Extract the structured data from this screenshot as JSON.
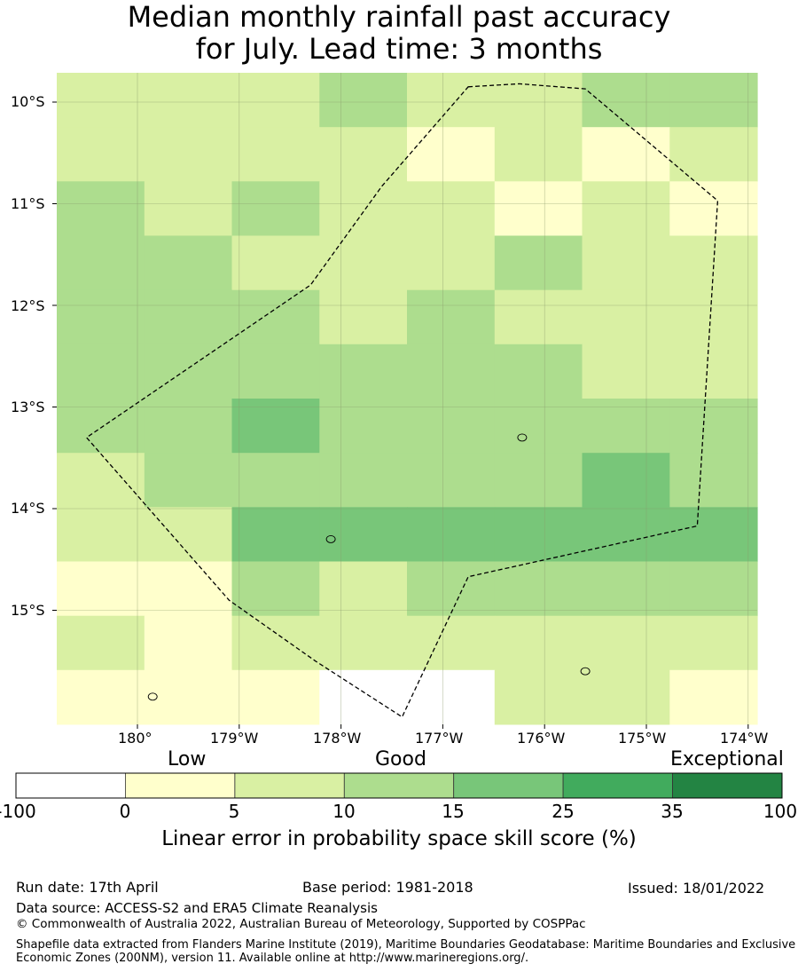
{
  "title": {
    "line1": "Median monthly rainfall past accuracy",
    "line2": "for July. Lead time: 3 months"
  },
  "map": {
    "lat_labels": [
      "10°S",
      "11°S",
      "12°S",
      "13°S",
      "14°S",
      "15°S"
    ],
    "lon_labels": [
      "180°",
      "179°W",
      "178°W",
      "177°W",
      "176°W",
      "175°W",
      "174°W"
    ],
    "lon_extent": [
      -180.8,
      -173.9
    ],
    "lat_extent": [
      -9.7,
      -16.1
    ],
    "skill_grid": [
      [
        2,
        2,
        2,
        3,
        2,
        2,
        3,
        3
      ],
      [
        2,
        2,
        2,
        2,
        1,
        2,
        1,
        2
      ],
      [
        3,
        2,
        3,
        2,
        2,
        1,
        2,
        1
      ],
      [
        3,
        3,
        2,
        2,
        2,
        3,
        2,
        2
      ],
      [
        3,
        3,
        3,
        2,
        3,
        2,
        2,
        2
      ],
      [
        3,
        3,
        3,
        3,
        3,
        3,
        2,
        2
      ],
      [
        3,
        3,
        4,
        3,
        3,
        3,
        3,
        3
      ],
      [
        2,
        3,
        3,
        3,
        3,
        3,
        4,
        3
      ],
      [
        2,
        2,
        4,
        4,
        4,
        4,
        4,
        4
      ],
      [
        1,
        1,
        3,
        2,
        3,
        3,
        3,
        3
      ],
      [
        2,
        1,
        2,
        2,
        2,
        2,
        2,
        2
      ],
      [
        1,
        1,
        1,
        0,
        0,
        2,
        2,
        1
      ]
    ],
    "skill_note": "cell values are colour-class indices into colorbar.colors",
    "eez_boundary": [
      [
        -176.75,
        -9.85
      ],
      [
        -176.25,
        -9.82
      ],
      [
        -175.6,
        -9.87
      ],
      [
        -174.3,
        -10.97
      ],
      [
        -174.5,
        -14.17
      ],
      [
        -176.75,
        -14.67
      ],
      [
        -177.4,
        -16.05
      ],
      [
        -178.25,
        -15.5
      ],
      [
        -179.1,
        -14.9
      ],
      [
        -180.5,
        -13.3
      ],
      [
        -180.5,
        -13.3
      ],
      [
        -178.3,
        -11.8
      ],
      [
        -177.6,
        -10.83
      ],
      [
        -176.75,
        -9.85
      ]
    ],
    "islands": [
      {
        "name_icon": "islet",
        "lon": -176.22,
        "lat": -13.3
      },
      {
        "name_icon": "islet",
        "lon": -178.1,
        "lat": -14.3
      },
      {
        "name_icon": "islet",
        "lon": -175.6,
        "lat": -15.6
      },
      {
        "name_icon": "islet",
        "lon": -179.85,
        "lat": -15.85
      }
    ]
  },
  "colorbar": {
    "categories": [
      "Low",
      "Good",
      "Exceptional"
    ],
    "ticks": [
      "-100",
      "0",
      "5",
      "10",
      "15",
      "25",
      "35",
      "100"
    ],
    "colors": [
      "#ffffff",
      "#ffffcc",
      "#d9f0a3",
      "#addd8e",
      "#78c679",
      "#41ab5d",
      "#238443"
    ],
    "title": "Linear error in probability space skill score (%)"
  },
  "footer": {
    "run_date": "Run date: 17th April",
    "base_period": "Base period: 1981-2018",
    "issued": "Issued: 18/01/2022",
    "data_source": "Data source: ACCESS-S2 and ERA5 Climate Reanalysis",
    "copyright": "© Commonwealth of Australia 2022, Australian Bureau of Meteorology, Supported by COSPPac",
    "shapefile": "Shapefile data extracted from Flanders Marine Institute (2019), Maritime Boundaries Geodatabase: Maritime Boundaries and Exclusive Economic Zones (200NM), version 11. Available online at http://www.marineregions.org/."
  }
}
